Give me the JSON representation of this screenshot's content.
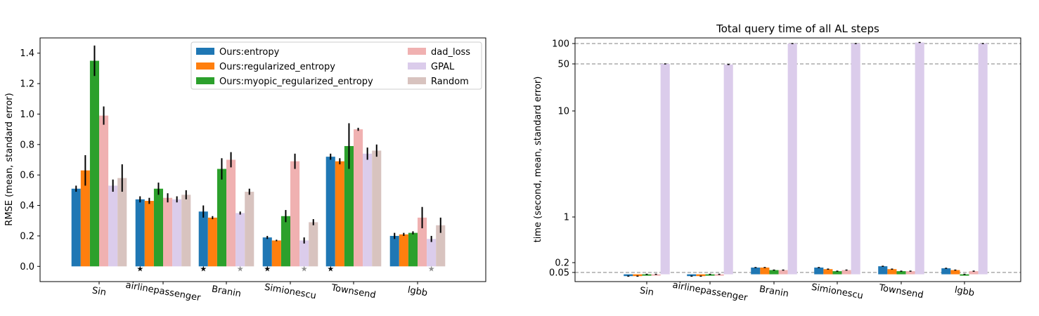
{
  "chart_data": [
    {
      "type": "bar",
      "title": "",
      "xlabel": "",
      "ylabel": "RMSE (mean, standard error)",
      "ylim": [
        -0.1,
        1.5
      ],
      "yticks": [
        "0.0",
        "0.2",
        "0.4",
        "0.6",
        "0.8",
        "1.0",
        "1.2",
        "1.4"
      ],
      "ytick_values": [
        0,
        0.2,
        0.4,
        0.6,
        0.8,
        1.0,
        1.2,
        1.4
      ],
      "categories": [
        "Sin",
        "airlinepassenger",
        "Branin",
        "Simionescu",
        "Townsend",
        "lgbb"
      ],
      "legend_position": "top-right",
      "series": [
        {
          "name": "Ours:entropy",
          "color": "#1f77b4",
          "values": [
            0.51,
            0.44,
            0.36,
            0.19,
            0.72,
            0.2
          ],
          "errors": [
            0.02,
            0.02,
            0.04,
            0.01,
            0.02,
            0.02
          ]
        },
        {
          "name": "Ours:regularized_entropy",
          "color": "#ff7f0e",
          "values": [
            0.63,
            0.43,
            0.32,
            0.17,
            0.69,
            0.21
          ],
          "errors": [
            0.1,
            0.02,
            0.01,
            0.005,
            0.02,
            0.01
          ]
        },
        {
          "name": "Ours:myopic_regularized_entropy",
          "color": "#2ca02c",
          "values": [
            1.35,
            0.51,
            0.64,
            0.33,
            0.79,
            0.22
          ],
          "errors": [
            0.1,
            0.04,
            0.07,
            0.04,
            0.15,
            0.01
          ]
        },
        {
          "name": "dad_loss",
          "color": "#f0b1b1",
          "values": [
            0.99,
            0.45,
            0.7,
            0.69,
            0.9,
            0.32
          ],
          "errors": [
            0.06,
            0.03,
            0.05,
            0.05,
            0.01,
            0.07
          ]
        },
        {
          "name": "GPAL",
          "color": "#dbcceb",
          "values": [
            0.53,
            0.44,
            0.35,
            0.17,
            0.74,
            0.18
          ],
          "errors": [
            0.04,
            0.02,
            0.01,
            0.02,
            0.04,
            0.02
          ]
        },
        {
          "name": "Random",
          "color": "#d8c3bf",
          "values": [
            0.58,
            0.47,
            0.49,
            0.29,
            0.76,
            0.27
          ],
          "errors": [
            0.09,
            0.03,
            0.02,
            0.02,
            0.04,
            0.05
          ]
        }
      ],
      "markers": [
        {
          "category": "airlinepassenger",
          "series": "Ours:entropy",
          "symbol": "★",
          "color": "#000000"
        },
        {
          "category": "Branin",
          "series": "Ours:entropy",
          "symbol": "★",
          "color": "#000000"
        },
        {
          "category": "Branin",
          "series": "GPAL",
          "symbol": "★",
          "color": "#8c8c8c"
        },
        {
          "category": "Simionescu",
          "series": "Ours:entropy",
          "symbol": "★",
          "color": "#000000"
        },
        {
          "category": "Simionescu",
          "series": "GPAL",
          "symbol": "★",
          "color": "#8c8c8c"
        },
        {
          "category": "Townsend",
          "series": "Ours:entropy",
          "symbol": "★",
          "color": "#000000"
        },
        {
          "category": "lgbb",
          "series": "GPAL",
          "symbol": "★",
          "color": "#8c8c8c"
        }
      ]
    },
    {
      "type": "bar",
      "title": "Total query time of all AL steps",
      "xlabel": "",
      "ylabel": "time (second, mean, standard error)",
      "yscale": "symlog-like",
      "ylim": [
        0.0,
        130
      ],
      "yticks": [
        "0.05",
        "0.2",
        "1",
        "10",
        "50",
        "100"
      ],
      "ytick_values": [
        0.05,
        0.2,
        1,
        10,
        50,
        100
      ],
      "hlines": [
        0.05,
        50,
        100
      ],
      "categories": [
        "Sin",
        "airlinepassenger",
        "Branin",
        "Simionescu",
        "Townsend",
        "lgbb"
      ],
      "series": [
        {
          "name": "Ours:entropy",
          "color": "#1f77b4",
          "values": [
            0.03,
            0.03,
            0.1,
            0.1,
            0.12,
            0.09
          ]
        },
        {
          "name": "Ours:regularized_entropy",
          "color": "#ff7f0e",
          "values": [
            0.03,
            0.03,
            0.1,
            0.08,
            0.08,
            0.07
          ]
        },
        {
          "name": "Ours:myopic_regularized_entropy",
          "color": "#2ca02c",
          "values": [
            0.04,
            0.04,
            0.07,
            0.06,
            0.06,
            0.04
          ]
        },
        {
          "name": "dad_loss",
          "color": "#f0b1b1",
          "values": [
            0.04,
            0.04,
            0.07,
            0.07,
            0.06,
            0.06
          ]
        },
        {
          "name": "GPAL",
          "color": "#dbcceb",
          "values": [
            50,
            49,
            100,
            100,
            105,
            100
          ]
        }
      ]
    }
  ]
}
